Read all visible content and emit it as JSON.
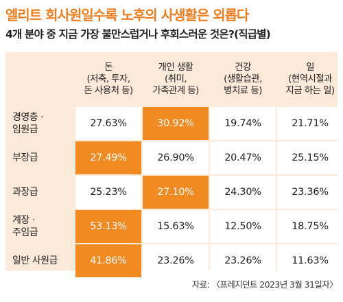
{
  "title": "엘리트 회사원일수록 노후의 사생활은 외롭다",
  "subtitle": "4개 분야 중 지금 가장 불만스럽거나 후회스러운 것은?(직급별)",
  "source": "자료: 〈프레지던트 2023년 3월 31일자〉",
  "colors": {
    "accent": "#f28a22",
    "header_bg": "#fbe9da",
    "title": "#ef7d1e"
  },
  "chart_data": {
    "type": "table",
    "columns": [
      {
        "lines": [
          "돈",
          "(저축, 투자,",
          "돈 사용처 등)"
        ]
      },
      {
        "lines": [
          "개인 생활",
          "(취미,",
          "가족관계 등)"
        ]
      },
      {
        "lines": [
          "건강",
          "(생활습관,",
          "병치료 등)"
        ]
      },
      {
        "lines": [
          "일",
          "(현역시절과",
          "지금 하는 일)"
        ]
      }
    ],
    "rows": [
      {
        "label_lines": [
          "경영층 ·",
          "임원급"
        ],
        "values": [
          "27.63%",
          "30.92%",
          "19.74%",
          "21.71%"
        ],
        "highlight": 1
      },
      {
        "label_lines": [
          "부장급"
        ],
        "values": [
          "27.49%",
          "26.90%",
          "20.47%",
          "25.15%"
        ],
        "highlight": 0
      },
      {
        "label_lines": [
          "과장급"
        ],
        "values": [
          "25.23%",
          "27.10%",
          "24.30%",
          "23.36%"
        ],
        "highlight": 1
      },
      {
        "label_lines": [
          "계장 ·",
          "주임급"
        ],
        "values": [
          "53.13%",
          "15.63%",
          "12.50%",
          "18.75%"
        ],
        "highlight": 0
      },
      {
        "label_lines": [
          "일반 사원급"
        ],
        "values": [
          "41.86%",
          "23.26%",
          "23.26%",
          "11.63%"
        ],
        "highlight": 0
      }
    ]
  }
}
